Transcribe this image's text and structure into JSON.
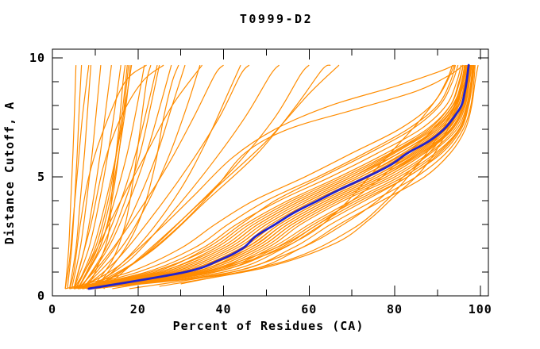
{
  "chart_data": {
    "type": "line",
    "title": "T0999-D2",
    "xlabel": "Percent of Residues (CA)",
    "ylabel": "Distance Cutoff, A",
    "xlim": [
      0,
      101.9
    ],
    "ylim": [
      0,
      10.37
    ],
    "x_ticks_major": [
      0,
      20,
      40,
      60,
      80,
      100
    ],
    "x_ticks_minor": [
      10,
      30,
      50,
      70,
      90
    ],
    "y_ticks_major": [
      0,
      5,
      10
    ],
    "y_ticks_minor": [
      1,
      2,
      3,
      4,
      6,
      7,
      8,
      9
    ],
    "grid": false,
    "legend": "none",
    "colors": {
      "models": "#ff8c00",
      "highlight": "#2222cc",
      "frame": "#000000",
      "background": "#ffffff"
    },
    "highlight_series": {
      "name": "highlighted-model",
      "points": [
        [
          8.5,
          0.3
        ],
        [
          31,
          1
        ],
        [
          39,
          1.5
        ],
        [
          44.5,
          2
        ],
        [
          47.5,
          2.5
        ],
        [
          52,
          3
        ],
        [
          56.5,
          3.5
        ],
        [
          62,
          4
        ],
        [
          67.5,
          4.5
        ],
        [
          73.5,
          5
        ],
        [
          79,
          5.5
        ],
        [
          83,
          6
        ],
        [
          88,
          6.5
        ],
        [
          91.5,
          7
        ],
        [
          93.8,
          7.5
        ],
        [
          95.6,
          8
        ],
        [
          96.3,
          8.5
        ],
        [
          96.8,
          9
        ],
        [
          97.3,
          9.7
        ]
      ]
    },
    "model_series_shared_cutoffs": [
      0.3,
      1,
      2,
      3,
      4,
      5,
      6,
      7,
      8,
      9,
      9.7
    ],
    "model_series_bundle": [
      [
        5,
        25,
        38,
        46,
        56,
        68,
        79,
        88,
        93,
        95,
        96
      ],
      [
        6,
        28,
        42,
        50,
        60,
        72,
        82,
        90,
        94.5,
        96,
        96.8
      ],
      [
        7,
        30,
        44,
        52,
        62,
        74,
        84,
        91.5,
        95,
        96.5,
        97
      ],
      [
        8,
        33,
        47,
        55,
        65,
        77,
        86,
        93,
        96,
        97.2,
        97.6
      ],
      [
        8,
        35,
        49,
        57,
        67,
        79,
        88,
        94,
        96.5,
        97.5,
        98
      ],
      [
        8.5,
        37,
        51,
        60,
        70,
        81,
        89.5,
        95,
        97,
        98,
        98.4
      ],
      [
        9,
        40,
        54,
        63,
        73,
        83,
        91,
        95.5,
        97.3,
        98.2,
        98.6
      ],
      [
        4,
        22,
        35,
        43,
        53,
        65,
        76,
        86,
        92,
        94.5,
        95.5
      ],
      [
        5,
        24,
        36,
        44,
        52,
        63,
        74,
        84,
        90.5,
        93.5,
        94.8
      ],
      [
        6,
        26,
        40,
        48,
        58,
        70,
        80,
        89,
        94,
        95.8,
        96.5
      ],
      [
        9,
        32,
        45,
        53,
        63,
        75,
        85,
        92,
        95.5,
        97,
        97.4
      ],
      [
        8.5,
        34,
        48,
        56,
        66,
        78,
        87,
        93.5,
        96.2,
        97.3,
        97.8
      ],
      [
        7,
        29,
        43,
        51,
        61,
        73,
        83,
        91,
        95,
        96.6,
        97.1
      ],
      [
        8,
        31,
        46,
        54,
        64,
        76,
        85.5,
        92.5,
        95.8,
        97,
        97.5
      ],
      [
        9,
        38,
        52,
        61,
        71,
        82,
        90,
        95,
        97,
        98,
        98.3
      ],
      [
        9.5,
        42,
        56,
        65,
        75,
        85,
        92,
        96,
        97.8,
        98.5,
        98.8
      ],
      [
        4,
        20,
        33,
        41,
        50,
        62,
        73,
        83,
        90,
        93,
        94.2
      ],
      [
        5,
        23,
        37,
        45,
        55,
        67,
        78,
        87.5,
        93,
        95.2,
        96
      ],
      [
        6,
        27,
        41,
        49,
        59,
        71,
        81,
        90,
        94.2,
        96,
        96.7
      ],
      [
        9,
        33,
        46,
        54,
        64,
        76,
        86,
        93,
        96,
        97.1,
        97.6
      ],
      [
        8.5,
        36,
        50,
        58,
        68,
        80,
        88.5,
        94.5,
        96.8,
        97.8,
        98.2
      ],
      [
        7,
        28,
        42,
        50,
        60,
        72,
        82.5,
        90.5,
        94.8,
        96.4,
        97
      ],
      [
        8,
        30,
        45,
        53,
        63,
        75,
        84.5,
        92,
        95.4,
        96.9,
        97.3
      ],
      [
        8,
        33,
        47,
        55,
        65,
        77,
        86.5,
        93.2,
        96,
        97.2,
        97.7
      ],
      [
        6,
        25,
        39,
        47,
        57,
        69,
        79.5,
        88.5,
        93.6,
        95.6,
        96.3
      ],
      [
        9.5,
        44,
        58,
        67,
        77,
        87,
        93,
        96.5,
        98,
        98.8,
        99.5
      ],
      [
        3,
        18,
        30,
        38,
        47,
        59,
        70,
        81,
        88.5,
        92,
        93.5
      ],
      [
        5,
        26,
        40,
        48,
        58,
        70,
        81,
        89.5,
        94,
        96,
        96.6
      ],
      [
        9,
        34,
        48,
        56,
        66,
        78,
        87,
        93.5,
        96.3,
        97.4,
        97.9
      ],
      [
        8.5,
        38,
        53,
        62,
        72,
        83,
        90.5,
        95.2,
        97.2,
        98.1,
        98.5
      ]
    ],
    "model_series_curves": [
      [
        [
          3.5,
          0.3
        ],
        [
          4.5,
          2
        ],
        [
          5.2,
          4
        ],
        [
          5.8,
          6
        ],
        [
          6.3,
          8
        ],
        [
          6.8,
          9.7
        ]
      ],
      [
        [
          4,
          0.3
        ],
        [
          5.5,
          2
        ],
        [
          6.5,
          4
        ],
        [
          7.5,
          6
        ],
        [
          8.3,
          8
        ],
        [
          9,
          9.7
        ]
      ],
      [
        [
          4.5,
          0.3
        ],
        [
          6.5,
          2
        ],
        [
          8,
          4
        ],
        [
          9.3,
          6
        ],
        [
          10.4,
          8
        ],
        [
          11.3,
          9.7
        ]
      ],
      [
        [
          5,
          0.3
        ],
        [
          7.5,
          2
        ],
        [
          9.5,
          4
        ],
        [
          11.2,
          6
        ],
        [
          12.6,
          8
        ],
        [
          13.8,
          9.7
        ]
      ],
      [
        [
          5,
          0.3
        ],
        [
          8.5,
          2
        ],
        [
          11,
          4
        ],
        [
          13,
          6
        ],
        [
          14.7,
          8
        ],
        [
          16,
          9.7
        ]
      ],
      [
        [
          5.5,
          0.3
        ],
        [
          9.5,
          2
        ],
        [
          12.5,
          4
        ],
        [
          15,
          6
        ],
        [
          17,
          8
        ],
        [
          18.5,
          9.7
        ]
      ],
      [
        [
          6,
          0.3
        ],
        [
          11,
          2
        ],
        [
          14.5,
          4
        ],
        [
          17.5,
          6
        ],
        [
          19.8,
          8
        ],
        [
          21.5,
          9.7
        ]
      ],
      [
        [
          6,
          0.3
        ],
        [
          12,
          2.2
        ],
        [
          16,
          4
        ],
        [
          19.5,
          6
        ],
        [
          22.3,
          8
        ],
        [
          24.5,
          9.7
        ]
      ],
      [
        [
          6.5,
          0.3
        ],
        [
          13,
          2
        ],
        [
          18,
          4
        ],
        [
          22,
          6
        ],
        [
          25.2,
          8
        ],
        [
          27.8,
          9.7
        ]
      ],
      [
        [
          7,
          0.3
        ],
        [
          14.5,
          2
        ],
        [
          20,
          4
        ],
        [
          24.5,
          6
        ],
        [
          28,
          8
        ],
        [
          31,
          9.7
        ]
      ],
      [
        [
          7,
          0.3
        ],
        [
          16,
          2
        ],
        [
          22.5,
          4
        ],
        [
          27.5,
          6
        ],
        [
          31.5,
          8
        ],
        [
          34.5,
          9.7
        ]
      ],
      [
        [
          3,
          0.3
        ],
        [
          3.8,
          2
        ],
        [
          4.3,
          4
        ],
        [
          4.8,
          6
        ],
        [
          5.2,
          8
        ],
        [
          5.5,
          9.7
        ]
      ],
      [
        [
          8,
          0.3
        ],
        [
          10,
          1
        ],
        [
          13,
          2.5
        ],
        [
          14,
          4.5
        ],
        [
          15.5,
          7
        ],
        [
          16.5,
          9
        ],
        [
          17,
          9.7
        ]
      ],
      [
        [
          9,
          0.3
        ],
        [
          14,
          1.5
        ],
        [
          17,
          3
        ],
        [
          19,
          5
        ],
        [
          20.5,
          7
        ],
        [
          22,
          9
        ],
        [
          23,
          9.7
        ]
      ],
      [
        [
          5,
          0.3
        ],
        [
          6,
          1
        ],
        [
          9,
          3
        ],
        [
          12,
          5.5
        ],
        [
          16,
          7.5
        ],
        [
          21,
          9
        ],
        [
          26,
          9.7
        ]
      ],
      [
        [
          4,
          0.3
        ],
        [
          5,
          1
        ],
        [
          6.5,
          3
        ],
        [
          8.5,
          5
        ],
        [
          12,
          7
        ],
        [
          17,
          9
        ],
        [
          22,
          9.7
        ]
      ],
      [
        [
          10,
          0.3
        ],
        [
          17,
          2
        ],
        [
          21,
          3.5
        ],
        [
          24,
          5.5
        ],
        [
          26,
          7.5
        ],
        [
          28,
          9
        ],
        [
          29.5,
          9.7
        ]
      ],
      [
        [
          3,
          0.3
        ],
        [
          4,
          1.5
        ],
        [
          5,
          3.5
        ],
        [
          6,
          5.5
        ],
        [
          7,
          7.5
        ],
        [
          8,
          9
        ],
        [
          8.5,
          9.7
        ]
      ],
      [
        [
          5.5,
          0.3
        ],
        [
          10,
          2
        ],
        [
          13,
          4
        ],
        [
          15,
          6
        ],
        [
          16.5,
          8
        ],
        [
          17.5,
          9.7
        ]
      ],
      [
        [
          6,
          0.3
        ],
        [
          10.5,
          2
        ],
        [
          13.5,
          4
        ],
        [
          15.5,
          6
        ],
        [
          17.2,
          8
        ],
        [
          18.2,
          9.7
        ]
      ],
      [
        [
          5.8,
          0.3
        ],
        [
          9.8,
          1.5
        ],
        [
          12.8,
          3
        ],
        [
          14.8,
          5
        ],
        [
          16.2,
          7
        ],
        [
          17.8,
          9.7
        ]
      ],
      [
        [
          6.5,
          0.3
        ],
        [
          12.5,
          2
        ],
        [
          17,
          4
        ],
        [
          20.5,
          6
        ],
        [
          23,
          8
        ],
        [
          25,
          9.7
        ]
      ],
      [
        [
          6,
          0.3
        ],
        [
          12,
          1.5
        ],
        [
          20,
          3.5
        ],
        [
          27,
          5.5
        ],
        [
          33,
          7.5
        ],
        [
          38,
          9.3
        ],
        [
          40,
          9.7
        ]
      ],
      [
        [
          7,
          0.3
        ],
        [
          15,
          1.5
        ],
        [
          24,
          3.5
        ],
        [
          32,
          5.5
        ],
        [
          39,
          7.5
        ],
        [
          44,
          9.3
        ],
        [
          46,
          9.7
        ]
      ],
      [
        [
          8,
          0.3
        ],
        [
          18,
          1.5
        ],
        [
          28,
          3.5
        ],
        [
          37,
          5.5
        ],
        [
          45,
          7.5
        ],
        [
          51,
          9.3
        ],
        [
          53,
          9.7
        ]
      ],
      [
        [
          9,
          0.3
        ],
        [
          20,
          1.5
        ],
        [
          32,
          3.5
        ],
        [
          43,
          5.5
        ],
        [
          52,
          7.5
        ],
        [
          58,
          9.3
        ],
        [
          60,
          9.7
        ]
      ],
      [
        [
          10,
          0.3
        ],
        [
          24,
          2
        ],
        [
          36,
          4
        ],
        [
          48,
          6
        ],
        [
          57,
          8
        ],
        [
          63,
          9.5
        ],
        [
          65,
          9.7
        ]
      ],
      [
        [
          8,
          0.3
        ],
        [
          14,
          1
        ],
        [
          22,
          2.5
        ],
        [
          30,
          4.5
        ],
        [
          36,
          6.5
        ],
        [
          41,
          8.5
        ],
        [
          44,
          9.7
        ]
      ],
      [
        [
          12,
          0.3
        ],
        [
          26,
          2.5
        ],
        [
          38,
          4.5
        ],
        [
          50,
          6.5
        ],
        [
          60,
          8.5
        ],
        [
          67,
          9.7
        ]
      ],
      [
        [
          5,
          0.3
        ],
        [
          9,
          1.5
        ],
        [
          16,
          4
        ],
        [
          22,
          6
        ],
        [
          28,
          8
        ],
        [
          35,
          9.7
        ]
      ],
      [
        [
          14,
          0.3
        ],
        [
          35,
          1
        ],
        [
          52,
          2
        ],
        [
          62,
          3
        ],
        [
          70,
          4
        ],
        [
          77,
          5
        ],
        [
          83,
          6
        ],
        [
          89,
          7
        ],
        [
          93.5,
          8
        ],
        [
          96,
          9
        ],
        [
          97,
          9.7
        ]
      ],
      [
        [
          18,
          0.3
        ],
        [
          42,
          1
        ],
        [
          58,
          2
        ],
        [
          68,
          3
        ],
        [
          76,
          4
        ],
        [
          82,
          5
        ],
        [
          88,
          6
        ],
        [
          92.5,
          7
        ],
        [
          95.5,
          8
        ],
        [
          97.2,
          9
        ],
        [
          98,
          9.7
        ]
      ],
      [
        [
          25,
          0.4
        ],
        [
          50,
          1.2
        ],
        [
          66,
          2.2
        ],
        [
          74,
          3.2
        ],
        [
          80,
          4.2
        ],
        [
          86,
          5.2
        ],
        [
          91,
          6.5
        ],
        [
          94.5,
          8
        ],
        [
          97.5,
          9.7
        ]
      ],
      [
        [
          10,
          0.3
        ],
        [
          30,
          0.8
        ],
        [
          48,
          1.6
        ],
        [
          60,
          2.6
        ],
        [
          68,
          3.8
        ],
        [
          74,
          5
        ],
        [
          80,
          6.2
        ],
        [
          86,
          7.4
        ],
        [
          91,
          8.6
        ],
        [
          94,
          9.7
        ]
      ],
      [
        [
          8,
          0.3
        ],
        [
          20,
          1.5
        ],
        [
          30,
          3
        ],
        [
          38,
          4.5
        ],
        [
          45,
          6
        ],
        [
          55,
          7
        ],
        [
          70,
          7.8
        ],
        [
          85,
          8.6
        ],
        [
          93,
          9.3
        ],
        [
          96,
          9.7
        ]
      ],
      [
        [
          6,
          0.3
        ],
        [
          15,
          1.2
        ],
        [
          25,
          2.8
        ],
        [
          33,
          4.2
        ],
        [
          42,
          5.8
        ],
        [
          52,
          7
        ],
        [
          65,
          8
        ],
        [
          80,
          8.8
        ],
        [
          90,
          9.4
        ],
        [
          94,
          9.7
        ]
      ],
      [
        [
          30,
          0.5
        ],
        [
          55,
          1.5
        ],
        [
          70,
          2.8
        ],
        [
          78,
          4
        ],
        [
          84,
          5.2
        ],
        [
          89,
          6.4
        ],
        [
          93,
          7.6
        ],
        [
          95.5,
          8.8
        ],
        [
          97,
          9.7
        ]
      ]
    ]
  }
}
